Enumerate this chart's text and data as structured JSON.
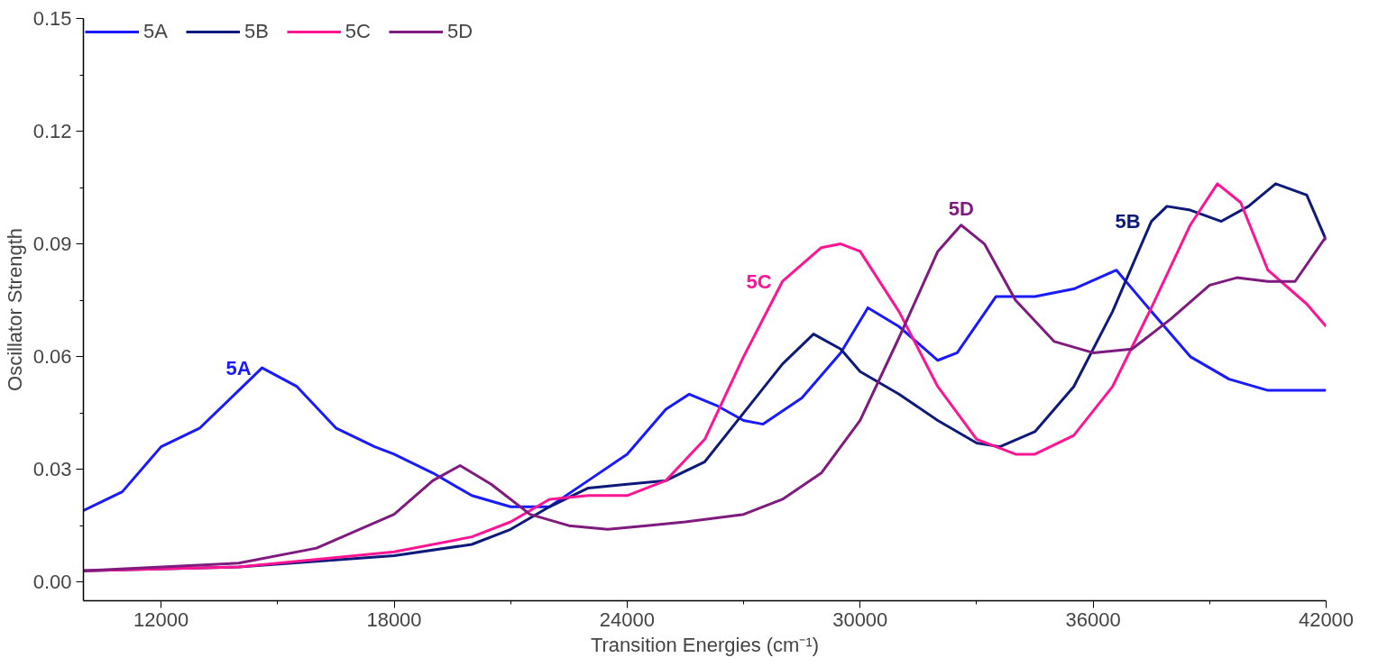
{
  "chart_data": {
    "type": "line",
    "xlabel": "Transition Energies (cm⁻¹)",
    "ylabel": "Oscillator Strength",
    "xlim": [
      10000,
      42000
    ],
    "ylim": [
      -0.005,
      0.15
    ],
    "xticks": [
      12000,
      18000,
      24000,
      30000,
      36000,
      42000
    ],
    "yticks": [
      {
        "value": 0,
        "label": "0.00"
      },
      {
        "value": 0.03,
        "label": "0.03"
      },
      {
        "value": 0.06,
        "label": "0.06"
      },
      {
        "value": 0.09,
        "label": "0.09"
      },
      {
        "value": 0.12,
        "label": "0.12"
      },
      {
        "value": 0.15,
        "label": "0.15"
      }
    ],
    "grid": false,
    "legend": "top left",
    "line_style": "solid",
    "marker": "none",
    "series": [
      {
        "name": "5A",
        "color": "#1a1aff",
        "x": [
          10000,
          11000,
          12000,
          13000,
          14000,
          14600,
          15500,
          16500,
          17500,
          18000,
          19000,
          20000,
          21000,
          22000,
          23000,
          24000,
          25000,
          25600,
          26300,
          27000,
          27500,
          28500,
          29500,
          30200,
          31000,
          32000,
          32500,
          33500,
          34500,
          35500,
          36600,
          37500,
          38500,
          39500,
          40500,
          42000
        ],
        "values": [
          0.019,
          0.024,
          0.036,
          0.041,
          0.051,
          0.057,
          0.052,
          0.041,
          0.036,
          0.034,
          0.029,
          0.023,
          0.02,
          0.02,
          0.027,
          0.034,
          0.046,
          0.05,
          0.047,
          0.043,
          0.042,
          0.049,
          0.061,
          0.073,
          0.068,
          0.059,
          0.061,
          0.076,
          0.076,
          0.078,
          0.083,
          0.072,
          0.06,
          0.054,
          0.051,
          0.051
        ]
      },
      {
        "name": "5B",
        "color": "#0d1a7a",
        "x": [
          10000,
          14000,
          18000,
          20000,
          21000,
          22000,
          23000,
          24000,
          25000,
          26000,
          27000,
          28000,
          28800,
          29500,
          30000,
          31000,
          32000,
          33000,
          33600,
          34500,
          35500,
          36500,
          37500,
          37900,
          38500,
          39300,
          40000,
          40700,
          41500,
          42000
        ],
        "values": [
          0.003,
          0.004,
          0.007,
          0.01,
          0.014,
          0.02,
          0.025,
          0.026,
          0.027,
          0.032,
          0.045,
          0.058,
          0.066,
          0.062,
          0.056,
          0.05,
          0.043,
          0.037,
          0.036,
          0.04,
          0.052,
          0.072,
          0.096,
          0.1,
          0.099,
          0.096,
          0.1,
          0.106,
          0.103,
          0.091
        ]
      },
      {
        "name": "5C",
        "color": "#ff1493",
        "x": [
          10000,
          14000,
          18000,
          20000,
          21000,
          22000,
          23000,
          24000,
          25000,
          26000,
          27000,
          28000,
          29000,
          29500,
          30000,
          31000,
          32000,
          33000,
          34000,
          34500,
          35500,
          36500,
          37500,
          38500,
          39200,
          39800,
          40500,
          41500,
          42000
        ],
        "values": [
          0.003,
          0.004,
          0.008,
          0.012,
          0.016,
          0.022,
          0.023,
          0.023,
          0.027,
          0.038,
          0.06,
          0.08,
          0.089,
          0.09,
          0.088,
          0.072,
          0.052,
          0.038,
          0.034,
          0.034,
          0.039,
          0.052,
          0.073,
          0.095,
          0.106,
          0.101,
          0.083,
          0.074,
          0.068
        ]
      },
      {
        "name": "5D",
        "color": "#7f1a7f",
        "x": [
          10000,
          14000,
          16000,
          18000,
          19000,
          19700,
          20500,
          21500,
          22500,
          23500,
          24500,
          25500,
          27000,
          28000,
          29000,
          30000,
          31000,
          32000,
          32600,
          33200,
          34000,
          35000,
          36000,
          37000,
          38000,
          39000,
          39700,
          40500,
          41200,
          42000
        ],
        "values": [
          0.003,
          0.005,
          0.009,
          0.018,
          0.027,
          0.031,
          0.026,
          0.018,
          0.015,
          0.014,
          0.015,
          0.016,
          0.018,
          0.022,
          0.029,
          0.043,
          0.065,
          0.088,
          0.095,
          0.09,
          0.075,
          0.064,
          0.061,
          0.062,
          0.07,
          0.079,
          0.081,
          0.08,
          0.08,
          0.092
        ]
      }
    ],
    "annotations": [
      {
        "text": "5A",
        "x": 14600,
        "y": 0.057
      },
      {
        "text": "5B",
        "x": 37500,
        "y": 0.096
      },
      {
        "text": "5C",
        "x": 28000,
        "y": 0.08
      },
      {
        "text": "5D",
        "x": 32600,
        "y": 0.095
      }
    ]
  }
}
